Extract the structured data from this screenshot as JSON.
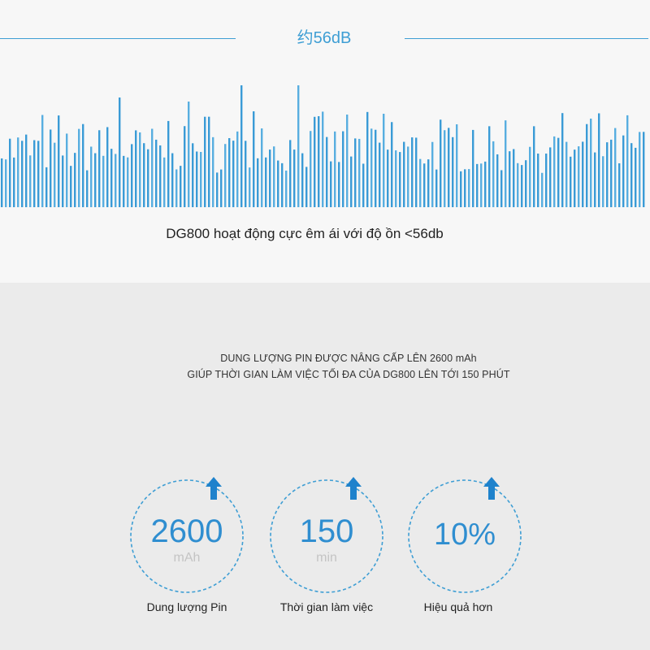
{
  "noise": {
    "label": "约56dB",
    "caption": "DG800 hoạt động cực êm ái với độ ồn <56db"
  },
  "battery": {
    "line1": "DUNG LƯỢNG PIN ĐƯỢC NÂNG CẤP LÊN 2600 mAh",
    "line2": "GIÚP THỜI GIAN LÀM VIỆC TỐI ĐA CỦA DG800 LÊN TỚI 150 PHÚT"
  },
  "stats": [
    {
      "value": "2600",
      "unit": "mAh",
      "caption": "Dung lượng Pin",
      "icon": "up-arrow-icon"
    },
    {
      "value": "150",
      "unit": "min",
      "caption": "Thời gian làm việc",
      "icon": "up-arrow-icon"
    },
    {
      "value": "10%",
      "unit": "",
      "caption": "Hiệu quả hơn",
      "icon": "up-arrow-icon"
    }
  ],
  "colors": {
    "accent": "#3e9ed4",
    "value": "#2f8ed0",
    "unit": "#c4c4c4",
    "top_background": "#f7f7f7",
    "bottom_background": "#ebebeb"
  }
}
